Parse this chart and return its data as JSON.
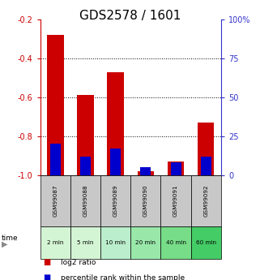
{
  "title": "GDS2578 / 1601",
  "samples": [
    "GSM99087",
    "GSM99088",
    "GSM99089",
    "GSM99090",
    "GSM99091",
    "GSM99092"
  ],
  "time_labels": [
    "2 min",
    "5 min",
    "10 min",
    "20 min",
    "40 min",
    "60 min"
  ],
  "log2_ratio": [
    -0.28,
    -0.59,
    -0.47,
    -0.98,
    -0.93,
    -0.73
  ],
  "percentile_rank": [
    20,
    12,
    17,
    5,
    8,
    12
  ],
  "ylim_left": [
    -1.0,
    -0.2
  ],
  "ylim_right": [
    0,
    100
  ],
  "yticks_left": [
    -1.0,
    -0.8,
    -0.6,
    -0.4,
    -0.2
  ],
  "yticks_right": [
    0,
    25,
    50,
    75,
    100
  ],
  "ytick_labels_right": [
    "0",
    "25",
    "50",
    "75",
    "100%"
  ],
  "bar_color_red": "#cc0000",
  "bar_color_blue": "#0000cc",
  "left_axis_color": "#cc0000",
  "right_axis_color": "#3333cc",
  "grid_color": "#000000",
  "sample_bg_color": "#c8c8c8",
  "time_bg_colors": [
    "#d4f5d4",
    "#d4f5d4",
    "#bbeecc",
    "#99e8aa",
    "#77dd88",
    "#44cc66"
  ],
  "bar_width": 0.55,
  "blue_bar_width": 0.35,
  "title_fontsize": 11,
  "tick_fontsize": 7,
  "label_fontsize": 6,
  "legend_fontsize": 6.5
}
